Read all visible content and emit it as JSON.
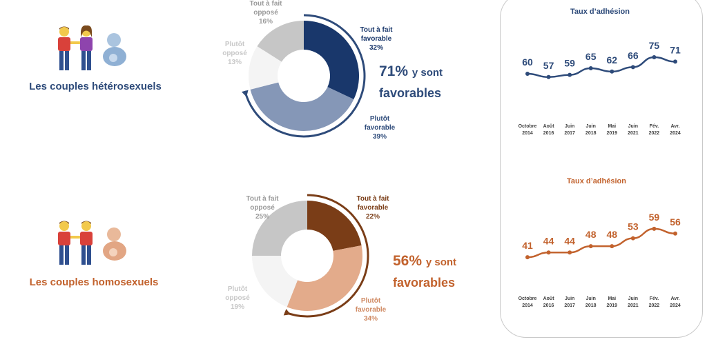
{
  "groups": [
    {
      "label": "Les couples hétérosexuels",
      "summary_pct": "71%",
      "summary_rest1": "y sont",
      "summary_rest2": "favorables",
      "icon": "man-woman-couple-with-baby-icon"
    },
    {
      "label": "Les couples homosexuels",
      "summary_pct": "56%",
      "summary_rest1": "y sont",
      "summary_rest2": "favorables",
      "icon": "man-man-couple-with-baby-icon"
    }
  ],
  "colors": {
    "hetero_dark": "#19376b",
    "hetero_mid": "#8597b7",
    "hetero_text": "#2e4b7a",
    "homo_dark": "#7a3d17",
    "homo_mid": "#e3ab8b",
    "homo_text": "#c2622d",
    "grey_dark": "#c6c6c6",
    "grey_light": "#f4f4f4",
    "grey_text": "#9a9a9a",
    "grey_text_light": "#c8c8c8"
  },
  "chart_data": [
    {
      "type": "pie",
      "donut": true,
      "categories": [
        "Tout à fait favorable",
        "Plutôt favorable",
        "Plutôt opposé",
        "Tout à fait opposé"
      ],
      "values": [
        32,
        39,
        13,
        16
      ],
      "labels": [
        [
          "Tout à fait",
          "favorable",
          "32%"
        ],
        [
          "Plutôt",
          "favorable",
          "39%"
        ],
        [
          "Plutôt",
          "opposé",
          "13%"
        ],
        [
          "Tout à fait",
          "opposé",
          "16%"
        ]
      ]
    },
    {
      "type": "pie",
      "donut": true,
      "categories": [
        "Tout à fait favorable",
        "Plutôt favorable",
        "Plutôt opposé",
        "Tout à fait opposé"
      ],
      "values": [
        22,
        34,
        19,
        25
      ],
      "labels": [
        [
          "Tout à fait",
          "favorable",
          "22%"
        ],
        [
          "Plutôt",
          "favorable",
          "34%"
        ],
        [
          "Plutôt",
          "opposé",
          "19%"
        ],
        [
          "Tout à fait",
          "opposé",
          "25%"
        ]
      ]
    },
    {
      "type": "line",
      "title": "Taux d’adhésion",
      "categories": [
        [
          "Octobre",
          "2014"
        ],
        [
          "Août",
          "2016"
        ],
        [
          "Juin",
          "2017"
        ],
        [
          "Juin",
          "2018"
        ],
        [
          "Mai",
          "2019"
        ],
        [
          "Juin",
          "2021"
        ],
        [
          "Fév.",
          "2022"
        ],
        [
          "Avr.",
          "2024"
        ]
      ],
      "values": [
        60,
        57,
        59,
        65,
        62,
        66,
        75,
        71
      ]
    },
    {
      "type": "line",
      "title": "Taux d’adhésion",
      "categories": [
        [
          "Octobre",
          "2014"
        ],
        [
          "Août",
          "2016"
        ],
        [
          "Juin",
          "2017"
        ],
        [
          "Juin",
          "2018"
        ],
        [
          "Mai",
          "2019"
        ],
        [
          "Juin",
          "2021"
        ],
        [
          "Fév.",
          "2022"
        ],
        [
          "Avr.",
          "2024"
        ]
      ],
      "values": [
        41,
        44,
        44,
        48,
        48,
        53,
        59,
        56
      ]
    }
  ]
}
